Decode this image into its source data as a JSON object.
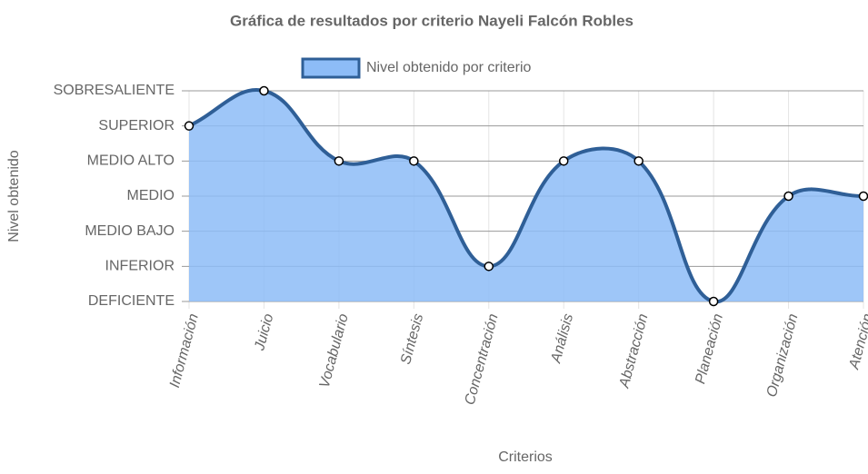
{
  "chart_data": {
    "type": "line",
    "title": "Gráfica de resultados por criterio Nayeli Falcón Robles",
    "x_label": "Criterios",
    "y_label": "Nivel obtenido",
    "categories": [
      "Información",
      "Juicio",
      "Vocabulario",
      "Síntesis",
      "Concentración",
      "Análisis",
      "Abstracción",
      "Planeación",
      "Organización",
      "Atención"
    ],
    "series": [
      {
        "name": "Nivel obtenido por criterio",
        "color": "#2f5f97",
        "fill": "#8dbcf7",
        "values": [
          6,
          7,
          5,
          5,
          2,
          5,
          5,
          1,
          4,
          4
        ]
      }
    ],
    "ylim": [
      1,
      7
    ],
    "yticks": [
      {
        "value": 1,
        "label": "DEFICIENTE"
      },
      {
        "value": 2,
        "label": "INFERIOR"
      },
      {
        "value": 3,
        "label": "MEDIO BAJO"
      },
      {
        "value": 4,
        "label": "MEDIO"
      },
      {
        "value": 5,
        "label": "MEDIO ALTO"
      },
      {
        "value": 6,
        "label": "SUPERIOR"
      },
      {
        "value": 7,
        "label": "SOBRESALIENTE"
      }
    ],
    "grid": true,
    "legend": "top"
  }
}
